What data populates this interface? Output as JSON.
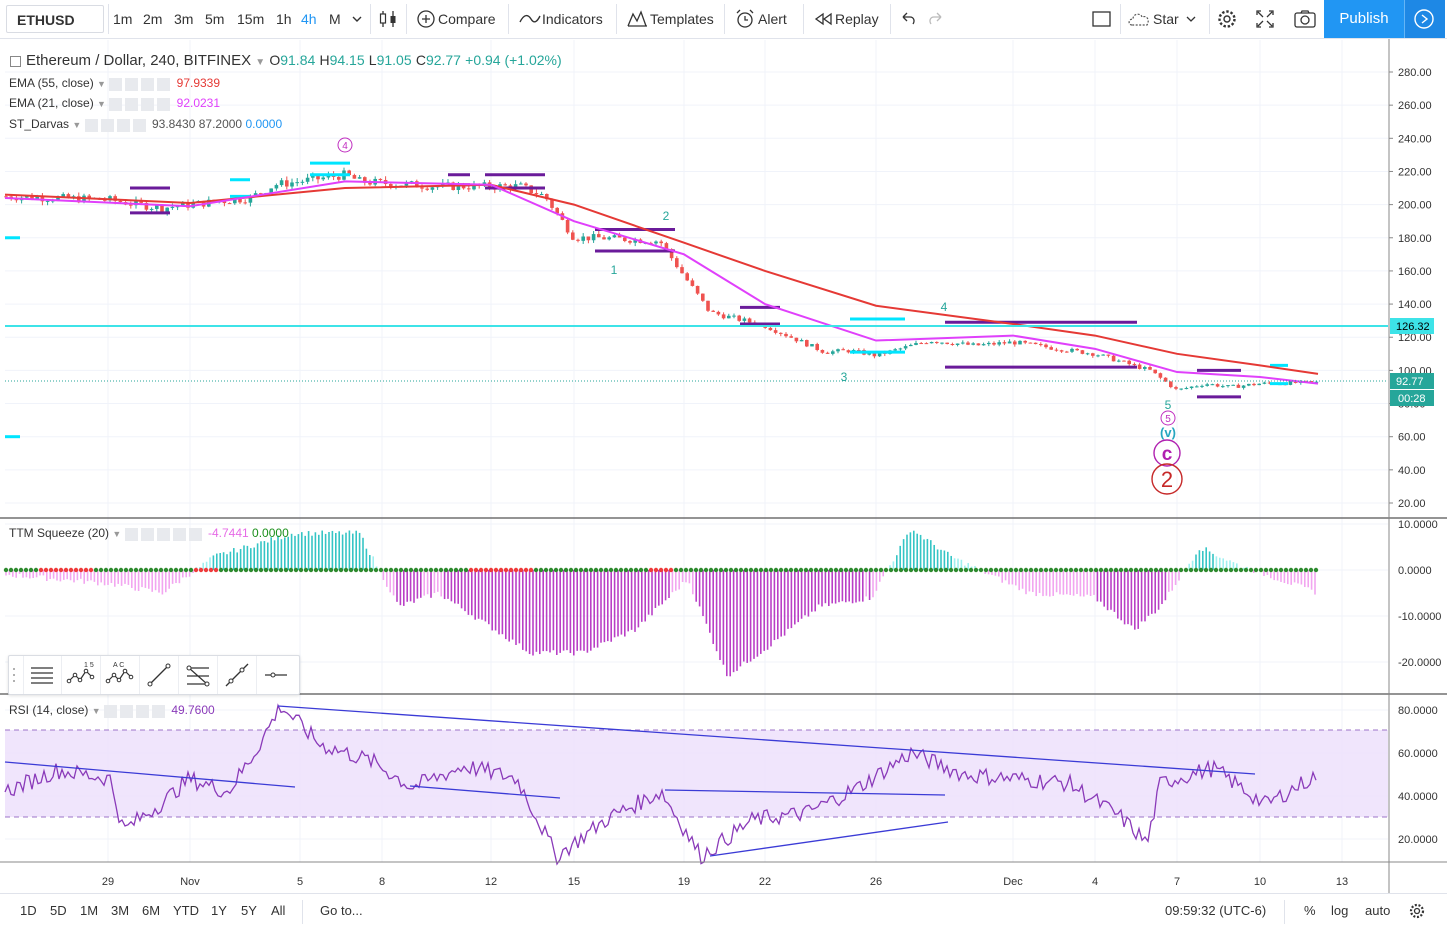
{
  "toolbar": {
    "symbol": "ETHUSD",
    "intervals": [
      "1m",
      "2m",
      "3m",
      "5m",
      "15m",
      "1h",
      "4h",
      "M"
    ],
    "active_interval": "4h",
    "compare": "Compare",
    "indicators": "Indicators",
    "templates": "Templates",
    "alert": "Alert",
    "replay": "Replay",
    "star": "Star",
    "publish": "Publish"
  },
  "main_legend": {
    "title": "Ethereum / Dollar, 240, BITFINEX",
    "o_label": "O",
    "o": "91.84",
    "h_label": "H",
    "h": "94.15",
    "l_label": "L",
    "l": "91.05",
    "c_label": "C",
    "c": "92.77",
    "change": "+0.94 (+1.02%)"
  },
  "indicators": {
    "ema55": {
      "label": "EMA (55, close)",
      "value": "97.9339",
      "color": "#e53935"
    },
    "ema21": {
      "label": "EMA (21, close)",
      "value": "92.0231",
      "color": "#e040fb"
    },
    "darvas": {
      "label": "ST_Darvas",
      "v1": "93.8430",
      "v2": "87.2000",
      "v3": "0.0000"
    },
    "ttm": {
      "label": "TTM Squeeze (20)",
      "v1": "-4.7441",
      "v2": "0.0000"
    },
    "rsi": {
      "label": "RSI (14, close)",
      "value": "49.7600"
    }
  },
  "price_axis": {
    "ticks": [
      "280.00",
      "260.00",
      "240.00",
      "220.00",
      "200.00",
      "180.00",
      "160.00",
      "140.00",
      "120.00",
      "100.00",
      "80.00",
      "60.00",
      "40.00",
      "20.00"
    ],
    "hline_label": "126.32",
    "last_label": "92.77",
    "countdown": "00:28"
  },
  "ttm_axis": {
    "ticks": [
      "10.0000",
      "0.0000",
      "-10.0000",
      "-20.0000"
    ]
  },
  "rsi_axis": {
    "ticks": [
      "80.0000",
      "60.0000",
      "40.0000",
      "20.0000"
    ]
  },
  "time_axis": {
    "labels": [
      "29",
      "Nov",
      "5",
      "8",
      "12",
      "15",
      "19",
      "22",
      "26",
      "Dec",
      "4",
      "7",
      "10",
      "13"
    ]
  },
  "wave_labels": {
    "a": "4",
    "b": "2",
    "c": "1",
    "d": "3",
    "e": "4",
    "f": "5",
    "g": "5",
    "h": "(v)",
    "i": "c",
    "j": "2"
  },
  "bottom": {
    "ranges": [
      "1D",
      "5D",
      "1M",
      "3M",
      "6M",
      "YTD",
      "1Y",
      "5Y",
      "All"
    ],
    "goto": "Go to...",
    "time": "09:59:32 (UTC-6)",
    "pct": "%",
    "log": "log",
    "auto": "auto"
  },
  "chart_data": {
    "type": "candlestick",
    "symbol": "ETHUSD",
    "x_labels": [
      "29",
      "Nov",
      "5",
      "8",
      "12",
      "15",
      "19",
      "22",
      "26",
      "Dec",
      "4",
      "7",
      "10",
      "13"
    ],
    "ylim": [
      10,
      290
    ],
    "horizontal_line": 126.32,
    "last_price": 92.77,
    "close_path": [
      {
        "x": "26 Oct",
        "y": 205
      },
      {
        "x": "29",
        "y": 203
      },
      {
        "x": "31",
        "y": 198
      },
      {
        "x": "Nov",
        "y": 200
      },
      {
        "x": "3",
        "y": 204
      },
      {
        "x": "4",
        "y": 212
      },
      {
        "x": "5",
        "y": 214
      },
      {
        "x": "6",
        "y": 218
      },
      {
        "x": "7",
        "y": 214
      },
      {
        "x": "8",
        "y": 213
      },
      {
        "x": "10",
        "y": 211
      },
      {
        "x": "12",
        "y": 211
      },
      {
        "x": "13",
        "y": 211
      },
      {
        "x": "14",
        "y": 205
      },
      {
        "x": "15",
        "y": 180
      },
      {
        "x": "16",
        "y": 180
      },
      {
        "x": "18",
        "y": 178
      },
      {
        "x": "19",
        "y": 157
      },
      {
        "x": "20",
        "y": 135
      },
      {
        "x": "22",
        "y": 127
      },
      {
        "x": "24",
        "y": 111
      },
      {
        "x": "25",
        "y": 112
      },
      {
        "x": "26",
        "y": 109
      },
      {
        "x": "28",
        "y": 118
      },
      {
        "x": "30",
        "y": 115
      },
      {
        "x": "Dec",
        "y": 117
      },
      {
        "x": "3",
        "y": 112
      },
      {
        "x": "4",
        "y": 110
      },
      {
        "x": "6",
        "y": 100
      },
      {
        "x": "7",
        "y": 88
      },
      {
        "x": "8",
        "y": 92
      },
      {
        "x": "9",
        "y": 90
      },
      {
        "x": "10",
        "y": 92
      },
      {
        "x": "12",
        "y": 92.77
      }
    ],
    "ema55_path": [
      {
        "x": "26 Oct",
        "y": 206
      },
      {
        "x": "Nov",
        "y": 201
      },
      {
        "x": "6",
        "y": 210
      },
      {
        "x": "12",
        "y": 212
      },
      {
        "x": "15",
        "y": 200
      },
      {
        "x": "19",
        "y": 177
      },
      {
        "x": "22",
        "y": 160
      },
      {
        "x": "26",
        "y": 139
      },
      {
        "x": "Dec",
        "y": 128
      },
      {
        "x": "4",
        "y": 121
      },
      {
        "x": "7",
        "y": 110
      },
      {
        "x": "10",
        "y": 103
      },
      {
        "x": "12",
        "y": 97.9
      }
    ],
    "ema21_path": [
      {
        "x": "26 Oct",
        "y": 204
      },
      {
        "x": "Nov",
        "y": 199
      },
      {
        "x": "6",
        "y": 214
      },
      {
        "x": "12",
        "y": 212
      },
      {
        "x": "15",
        "y": 190
      },
      {
        "x": "19",
        "y": 170
      },
      {
        "x": "22",
        "y": 140
      },
      {
        "x": "26",
        "y": 118
      },
      {
        "x": "Dec",
        "y": 121
      },
      {
        "x": "4",
        "y": 113
      },
      {
        "x": "7",
        "y": 99
      },
      {
        "x": "10",
        "y": 96
      },
      {
        "x": "12",
        "y": 92.0
      }
    ],
    "ttm_ylim": [
      -26,
      12
    ],
    "ttm_profile": [
      {
        "x": 0.0,
        "y": -1
      },
      {
        "x": 0.08,
        "y": -3
      },
      {
        "x": 0.12,
        "y": -5
      },
      {
        "x": 0.16,
        "y": 3
      },
      {
        "x": 0.22,
        "y": 8
      },
      {
        "x": 0.27,
        "y": 8
      },
      {
        "x": 0.3,
        "y": -8
      },
      {
        "x": 0.33,
        "y": -5
      },
      {
        "x": 0.4,
        "y": -18
      },
      {
        "x": 0.44,
        "y": -18
      },
      {
        "x": 0.48,
        "y": -13
      },
      {
        "x": 0.52,
        "y": -2
      },
      {
        "x": 0.55,
        "y": -23
      },
      {
        "x": 0.58,
        "y": -17
      },
      {
        "x": 0.62,
        "y": -8
      },
      {
        "x": 0.66,
        "y": -6
      },
      {
        "x": 0.69,
        "y": 9
      },
      {
        "x": 0.72,
        "y": 3
      },
      {
        "x": 0.78,
        "y": -5
      },
      {
        "x": 0.83,
        "y": -6
      },
      {
        "x": 0.86,
        "y": -13
      },
      {
        "x": 0.88,
        "y": -8
      },
      {
        "x": 0.91,
        "y": 5
      },
      {
        "x": 0.94,
        "y": 1
      },
      {
        "x": 1.0,
        "y": -5
      }
    ],
    "rsi_ylim": [
      10,
      86
    ],
    "rsi_band": [
      30,
      70
    ],
    "rsi_path": [
      {
        "x": 0.0,
        "y": 42
      },
      {
        "x": 0.04,
        "y": 52
      },
      {
        "x": 0.08,
        "y": 48
      },
      {
        "x": 0.09,
        "y": 24
      },
      {
        "x": 0.12,
        "y": 37
      },
      {
        "x": 0.14,
        "y": 48
      },
      {
        "x": 0.17,
        "y": 42
      },
      {
        "x": 0.19,
        "y": 60
      },
      {
        "x": 0.21,
        "y": 82
      },
      {
        "x": 0.24,
        "y": 64
      },
      {
        "x": 0.28,
        "y": 56
      },
      {
        "x": 0.31,
        "y": 44
      },
      {
        "x": 0.35,
        "y": 54
      },
      {
        "x": 0.39,
        "y": 48
      },
      {
        "x": 0.42,
        "y": 12
      },
      {
        "x": 0.46,
        "y": 30
      },
      {
        "x": 0.5,
        "y": 42
      },
      {
        "x": 0.53,
        "y": 12
      },
      {
        "x": 0.57,
        "y": 29
      },
      {
        "x": 0.61,
        "y": 32
      },
      {
        "x": 0.65,
        "y": 44
      },
      {
        "x": 0.69,
        "y": 60
      },
      {
        "x": 0.73,
        "y": 50
      },
      {
        "x": 0.77,
        "y": 48
      },
      {
        "x": 0.81,
        "y": 46
      },
      {
        "x": 0.85,
        "y": 30
      },
      {
        "x": 0.87,
        "y": 18
      },
      {
        "x": 0.88,
        "y": 46
      },
      {
        "x": 0.92,
        "y": 53
      },
      {
        "x": 0.96,
        "y": 36
      },
      {
        "x": 1.0,
        "y": 50
      }
    ]
  }
}
